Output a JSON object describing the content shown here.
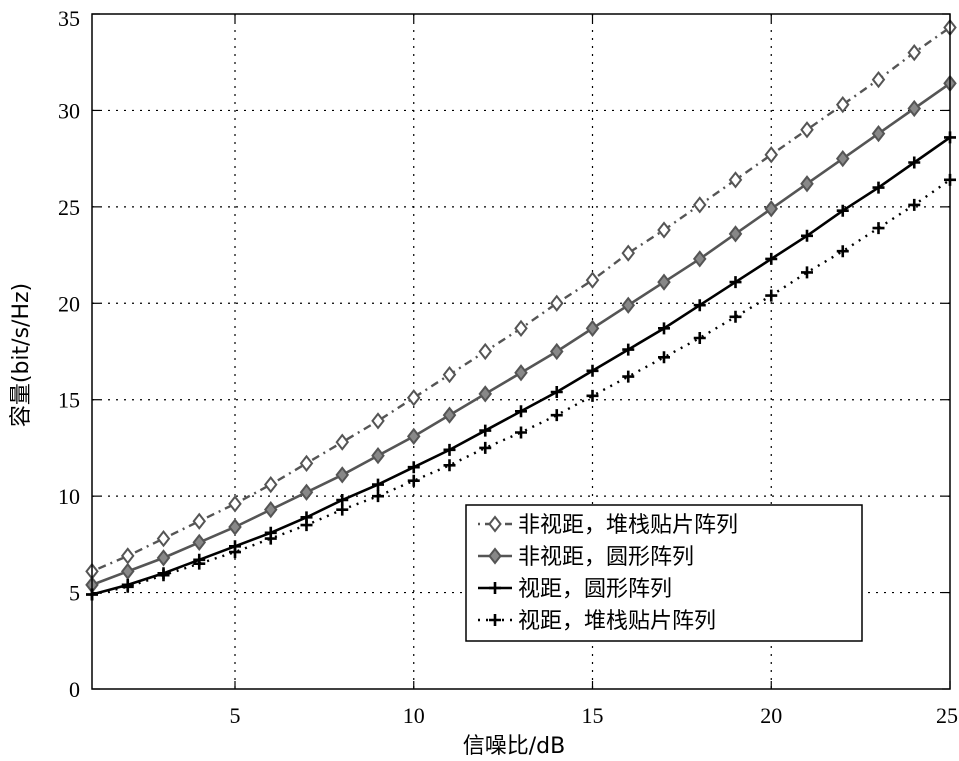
{
  "chart_data": {
    "type": "line",
    "xlabel": "信噪比/dB",
    "ylabel": "容量(bit/s/Hz)",
    "xlim": [
      1,
      25
    ],
    "ylim": [
      0,
      35
    ],
    "xticks": [
      5,
      10,
      15,
      20,
      25
    ],
    "yticks": [
      0,
      5,
      10,
      15,
      20,
      25,
      30,
      35
    ],
    "grid": true,
    "legend_position": "lower-right",
    "x": [
      1,
      2,
      3,
      4,
      5,
      6,
      7,
      8,
      9,
      10,
      11,
      12,
      13,
      14,
      15,
      16,
      17,
      18,
      19,
      20,
      21,
      22,
      23,
      24,
      25
    ],
    "series": [
      {
        "name": "非视距，堆栈贴片阵列",
        "line": "dot-dash",
        "marker": "open-diamond",
        "color": "#555555",
        "values": [
          6.1,
          6.9,
          7.8,
          8.7,
          9.6,
          10.6,
          11.7,
          12.8,
          13.9,
          15.1,
          16.3,
          17.5,
          18.7,
          20.0,
          21.2,
          22.6,
          23.8,
          25.1,
          26.4,
          27.7,
          29.0,
          30.3,
          31.6,
          33.0,
          34.3
        ]
      },
      {
        "name": "非视距，圆形阵列",
        "line": "solid",
        "marker": "filled-diamond",
        "color": "#555555",
        "values": [
          5.4,
          6.1,
          6.8,
          7.6,
          8.4,
          9.3,
          10.2,
          11.1,
          12.1,
          13.1,
          14.2,
          15.3,
          16.4,
          17.5,
          18.7,
          19.9,
          21.1,
          22.3,
          23.6,
          24.9,
          26.2,
          27.5,
          28.8,
          30.1,
          31.4
        ]
      },
      {
        "name": "视距，圆形阵列",
        "line": "solid",
        "marker": "plus",
        "color": "#000000",
        "values": [
          4.9,
          5.4,
          6.0,
          6.7,
          7.4,
          8.1,
          8.9,
          9.8,
          10.6,
          11.5,
          12.4,
          13.4,
          14.4,
          15.4,
          16.5,
          17.6,
          18.7,
          19.9,
          21.1,
          22.3,
          23.5,
          24.8,
          26.0,
          27.3,
          28.6
        ]
      },
      {
        "name": "视距，堆栈贴片阵列",
        "line": "dotted",
        "marker": "plus",
        "color": "#000000",
        "values": [
          4.9,
          5.3,
          5.9,
          6.5,
          7.1,
          7.8,
          8.5,
          9.3,
          10.0,
          10.8,
          11.6,
          12.5,
          13.3,
          14.2,
          15.2,
          16.2,
          17.2,
          18.2,
          19.3,
          20.4,
          21.6,
          22.7,
          23.9,
          25.1,
          26.4
        ]
      }
    ]
  }
}
